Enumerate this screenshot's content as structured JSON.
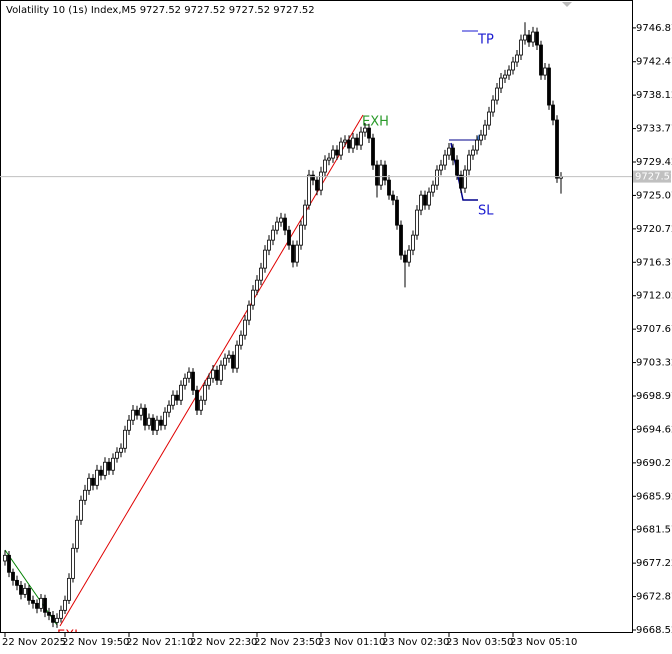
{
  "chart_data": {
    "type": "candlestick",
    "title": "Volatility 10 (1s) Index,M5  9727.52 9727.52 9727.52 9727.52",
    "open": [
      9677.5,
      9678.24,
      9676.03,
      9674.98,
      9674.33,
      9673.16,
      9673.94,
      9672.38,
      9671.99,
      9671.34,
      9672.64,
      9670.82,
      9670.43,
      9669.52,
      9670.04,
      9671.08,
      9672.38,
      9675.24,
      9679.15,
      9682.8,
      9685.4,
      9686.7,
      9688.26,
      9687.35,
      9689.31,
      9688.65,
      9690.35,
      9689.31,
      9690.87,
      9691.65,
      9692.17,
      9694.51,
      9695.82,
      9697.12,
      9696.47,
      9697.38,
      9695.16,
      9696.08,
      9694.51,
      9695.82,
      9695.16,
      9696.86,
      9697.77,
      9699.07,
      9698.42,
      9700.37,
      9701.28,
      9702.07,
      9699.72,
      9697.12,
      9698.42,
      9700.37,
      9701.28,
      9702.33,
      9701.02,
      9702.98,
      9703.89,
      9704.28,
      9702.59,
      9705.58,
      9706.88,
      9708.84,
      9710.79,
      9712.74,
      9714.04,
      9715.61,
      9717.95,
      9719.25,
      9720.55,
      9721.6,
      9722.12,
      9720.55,
      9718.6,
      9716.39,
      9718.6,
      9721.2,
      9723.81,
      9727.71,
      9727.06,
      9725.76,
      9728.11,
      9729.67,
      9729.93,
      9730.97,
      9730.32,
      9732.01,
      9732.27,
      9731.23,
      9732.53,
      9731.62,
      9733.31,
      9733.83,
      9732.53,
      9729.02,
      9726.41,
      9729.02,
      9727.06,
      9725.11,
      9724.46,
      9721.2,
      9717.3,
      9716.39,
      9717.95,
      9719.9,
      9723.16,
      9725.11,
      9723.81,
      9725.5,
      9726.41,
      9728.37,
      9729.02,
      9730.32,
      9731.23,
      9729.67,
      9727.71,
      9726.02,
      9728.37,
      9730.32,
      9730.97,
      9732.27,
      9732.92,
      9734.22,
      9735.92,
      9737.48,
      9739.04,
      9740.34,
      9740.73,
      9741.39,
      9742.43,
      9743.34,
      9745.29,
      9745.94,
      9745.03,
      9746.33,
      9744.64,
      9740.73,
      9741.65,
      9736.83,
      9734.88,
      9727.32
    ],
    "high": [
      9678.9,
      9678.8,
      9676.5,
      9675.6,
      9674.9,
      9674.6,
      9674.4,
      9673.0,
      9672.5,
      9673.2,
      9673.1,
      9671.4,
      9671.0,
      9670.7,
      9671.7,
      9673.0,
      9675.9,
      9679.8,
      9683.4,
      9686.0,
      9687.4,
      9688.9,
      9688.8,
      9690.0,
      9689.9,
      9691.0,
      9690.9,
      9691.5,
      9692.3,
      9692.8,
      9695.1,
      9696.5,
      9697.8,
      9697.7,
      9698.0,
      9697.9,
      9696.7,
      9696.6,
      9696.4,
      9696.4,
      9697.5,
      9698.4,
      9699.7,
      9699.7,
      9701.0,
      9701.9,
      9702.7,
      9702.6,
      9700.3,
      9699.0,
      9701.0,
      9701.9,
      9703.0,
      9702.9,
      9703.6,
      9704.5,
      9704.9,
      9704.8,
      9706.2,
      9707.5,
      9709.5,
      9711.4,
      9713.4,
      9714.7,
      9716.3,
      9718.6,
      9719.9,
      9721.2,
      9722.3,
      9722.8,
      9722.7,
      9721.1,
      9719.2,
      9719.2,
      9721.8,
      9724.5,
      9728.4,
      9728.3,
      9727.6,
      9728.8,
      9730.3,
      9730.6,
      9731.6,
      9731.6,
      9732.6,
      9732.9,
      9732.9,
      9733.2,
      9733.1,
      9734.0,
      9734.5,
      9734.4,
      9733.1,
      9729.6,
      9729.7,
      9729.6,
      9727.7,
      9725.7,
      9725.0,
      9721.8,
      9717.9,
      9718.6,
      9720.5,
      9723.8,
      9725.7,
      9725.7,
      9726.1,
      9727.0,
      9729.0,
      9729.7,
      9731.0,
      9731.9,
      9731.8,
      9730.3,
      9728.3,
      9729.0,
      9731.0,
      9731.6,
      9732.9,
      9733.6,
      9734.9,
      9736.6,
      9738.1,
      9739.7,
      9741.0,
      9741.4,
      9742.0,
      9743.1,
      9744.0,
      9746.0,
      9747.6,
      9746.6,
      9747.0,
      9746.9,
      9745.2,
      9742.3,
      9742.2,
      9737.4,
      9735.5,
      9728.1
    ],
    "low": [
      9676.9,
      9675.4,
      9674.3,
      9673.7,
      9672.5,
      9672.7,
      9671.8,
      9671.3,
      9670.7,
      9670.9,
      9670.2,
      9669.8,
      9668.9,
      9668.8,
      9669.5,
      9670.6,
      9671.9,
      9674.7,
      9678.6,
      9682.2,
      9684.8,
      9686.1,
      9686.7,
      9686.8,
      9688.0,
      9688.1,
      9688.7,
      9688.7,
      9690.3,
      9691.0,
      9691.6,
      9693.9,
      9695.2,
      9695.9,
      9695.8,
      9694.5,
      9694.6,
      9693.9,
      9693.9,
      9694.5,
      9694.6,
      9696.2,
      9697.2,
      9697.8,
      9697.8,
      9699.8,
      9700.7,
      9699.1,
      9696.5,
      9696.5,
      9697.8,
      9699.8,
      9700.7,
      9700.4,
      9700.4,
      9702.4,
      9703.3,
      9702.0,
      9702.0,
      9705.0,
      9706.3,
      9708.2,
      9710.2,
      9712.1,
      9713.4,
      9715.0,
      9717.3,
      9718.6,
      9720.0,
      9721.0,
      9719.9,
      9718.0,
      9715.7,
      9715.8,
      9718.0,
      9720.6,
      9723.2,
      9726.4,
      9725.1,
      9725.1,
      9727.5,
      9729.0,
      9729.3,
      9729.7,
      9729.7,
      9731.4,
      9730.6,
      9730.6,
      9731.0,
      9731.0,
      9732.7,
      9731.9,
      9728.4,
      9724.8,
      9725.8,
      9726.4,
      9724.5,
      9723.8,
      9720.6,
      9716.7,
      9713.1,
      9715.8,
      9717.3,
      9719.3,
      9722.5,
      9723.2,
      9723.2,
      9724.9,
      9725.8,
      9727.7,
      9728.4,
      9729.7,
      9729.0,
      9727.1,
      9725.4,
      9725.4,
      9727.7,
      9729.7,
      9730.4,
      9731.6,
      9732.3,
      9733.6,
      9735.3,
      9736.9,
      9738.4,
      9739.7,
      9740.1,
      9740.8,
      9741.8,
      9742.7,
      9744.7,
      9744.4,
      9744.4,
      9744.0,
      9740.1,
      9740.1,
      9736.2,
      9734.2,
      9726.7,
      9725.3
    ],
    "close": [
      9678.24,
      9676.03,
      9674.98,
      9674.33,
      9673.16,
      9673.94,
      9672.38,
      9671.99,
      9671.34,
      9672.64,
      9670.82,
      9670.43,
      9669.52,
      9670.04,
      9671.08,
      9672.38,
      9675.24,
      9679.15,
      9682.8,
      9685.4,
      9686.7,
      9688.26,
      9687.35,
      9689.31,
      9688.65,
      9690.35,
      9689.31,
      9690.87,
      9691.65,
      9692.17,
      9694.51,
      9695.82,
      9697.12,
      9696.47,
      9697.38,
      9695.16,
      9696.08,
      9694.51,
      9695.82,
      9695.16,
      9696.86,
      9697.77,
      9699.07,
      9698.42,
      9700.37,
      9701.28,
      9702.07,
      9699.72,
      9697.12,
      9698.42,
      9700.37,
      9701.28,
      9702.33,
      9701.02,
      9702.98,
      9703.89,
      9704.28,
      9702.59,
      9705.58,
      9706.88,
      9708.84,
      9710.79,
      9712.74,
      9714.04,
      9715.61,
      9717.95,
      9719.25,
      9720.55,
      9721.6,
      9722.12,
      9720.55,
      9718.6,
      9716.39,
      9718.6,
      9721.2,
      9723.81,
      9727.71,
      9727.06,
      9725.76,
      9728.11,
      9729.67,
      9729.93,
      9730.97,
      9730.32,
      9732.01,
      9732.27,
      9731.23,
      9732.53,
      9731.62,
      9733.31,
      9733.83,
      9732.53,
      9729.02,
      9726.41,
      9729.02,
      9727.06,
      9725.11,
      9724.46,
      9721.2,
      9717.3,
      9716.39,
      9717.95,
      9719.9,
      9723.16,
      9725.11,
      9723.81,
      9725.5,
      9726.41,
      9728.37,
      9729.02,
      9730.32,
      9731.23,
      9729.67,
      9727.71,
      9726.02,
      9728.37,
      9730.32,
      9730.97,
      9732.27,
      9732.92,
      9734.22,
      9735.92,
      9737.48,
      9739.04,
      9740.34,
      9740.73,
      9741.39,
      9742.43,
      9743.34,
      9745.29,
      9745.94,
      9745.03,
      9746.33,
      9744.64,
      9740.73,
      9741.65,
      9736.83,
      9734.88,
      9727.32,
      9727.52
    ],
    "bull_color": "#ffffff",
    "bear_color": "#000000",
    "xlim": [
      -1.25,
      156.75
    ],
    "xticks": [
      {
        "value": 0,
        "label": "22 Nov 2025"
      },
      {
        "value": 15,
        "label": "22 Nov 19:50"
      },
      {
        "value": 31,
        "label": "22 Nov 21:10"
      },
      {
        "value": 47,
        "label": "22 Nov 22:30"
      },
      {
        "value": 63,
        "label": "22 Nov 23:50"
      },
      {
        "value": 79,
        "label": "23 Nov 01:10"
      },
      {
        "value": 95,
        "label": "23 Nov 02:30"
      },
      {
        "value": 111,
        "label": "23 Nov 03:50"
      },
      {
        "value": 127,
        "label": "23 Nov 05:10"
      }
    ],
    "ylim": [
      9668.26,
      9750.5
    ],
    "yticks": [
      9746.87,
      9742.47,
      9738.12,
      9733.77,
      9729.42,
      9725.07,
      9720.72,
      9716.37,
      9712.02,
      9707.67,
      9703.32,
      9698.97,
      9694.62,
      9690.27,
      9685.92,
      9681.57,
      9677.22,
      9672.87,
      9668.52
    ],
    "current_price": 9727.52,
    "annotations": [
      "TP",
      "SL",
      "EXH",
      "EXL"
    ]
  }
}
